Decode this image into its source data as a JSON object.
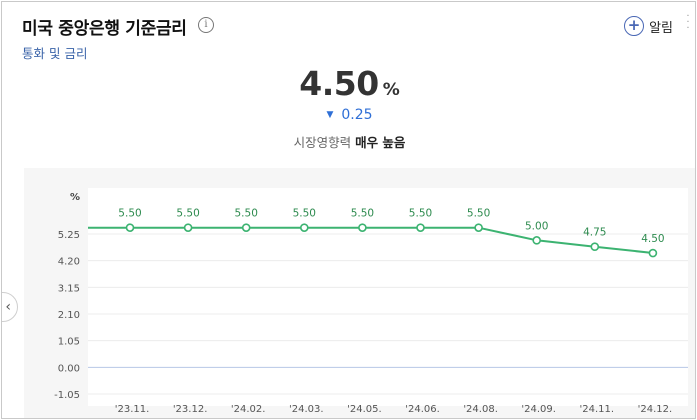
{
  "header": {
    "title": "미국 중앙은행 기준금리",
    "info_icon": "info-icon",
    "subtitle": "통화 및 금리",
    "alarm_label": "알림",
    "alarm_icon": "plus-circle-icon",
    "more_icon": "more-vertical-icon"
  },
  "summary": {
    "value": "4.50",
    "unit": "%",
    "change_arrow": "▼",
    "change_value": "0.25",
    "impact_label": "시장영향력",
    "impact_value": "매우 높음"
  },
  "nav": {
    "prev_icon": "chevron-left-icon"
  },
  "colors": {
    "line": "#3cb371",
    "chart_bg": "#f6f6f6",
    "change_down": "#2f6fd6",
    "zero_line": "#b7c7e6"
  },
  "chart_data": {
    "type": "line",
    "ylabel": "%",
    "categories": [
      "'23.11.",
      "'23.12.",
      "'24.02.",
      "'24.03.",
      "'24.05.",
      "'24.06.",
      "'24.08.",
      "'24.09.",
      "'24.11.",
      "'24.12."
    ],
    "series": [
      {
        "values": [
          5.5,
          5.5,
          5.5,
          5.5,
          5.5,
          5.5,
          5.5,
          5.0,
          4.75,
          4.5
        ]
      }
    ],
    "data_labels": [
      "5.50",
      "5.50",
      "5.50",
      "5.50",
      "5.50",
      "5.50",
      "5.50",
      "5.00",
      "4.75",
      "4.50"
    ],
    "yticks": [
      5.25,
      4.2,
      3.15,
      2.1,
      1.05,
      0.0,
      -1.05
    ],
    "ytick_labels": [
      "5.25",
      "4.20",
      "3.15",
      "2.10",
      "1.05",
      "0.00",
      "-1.05"
    ],
    "ylim": [
      -1.05,
      5.25
    ],
    "grid": true
  }
}
